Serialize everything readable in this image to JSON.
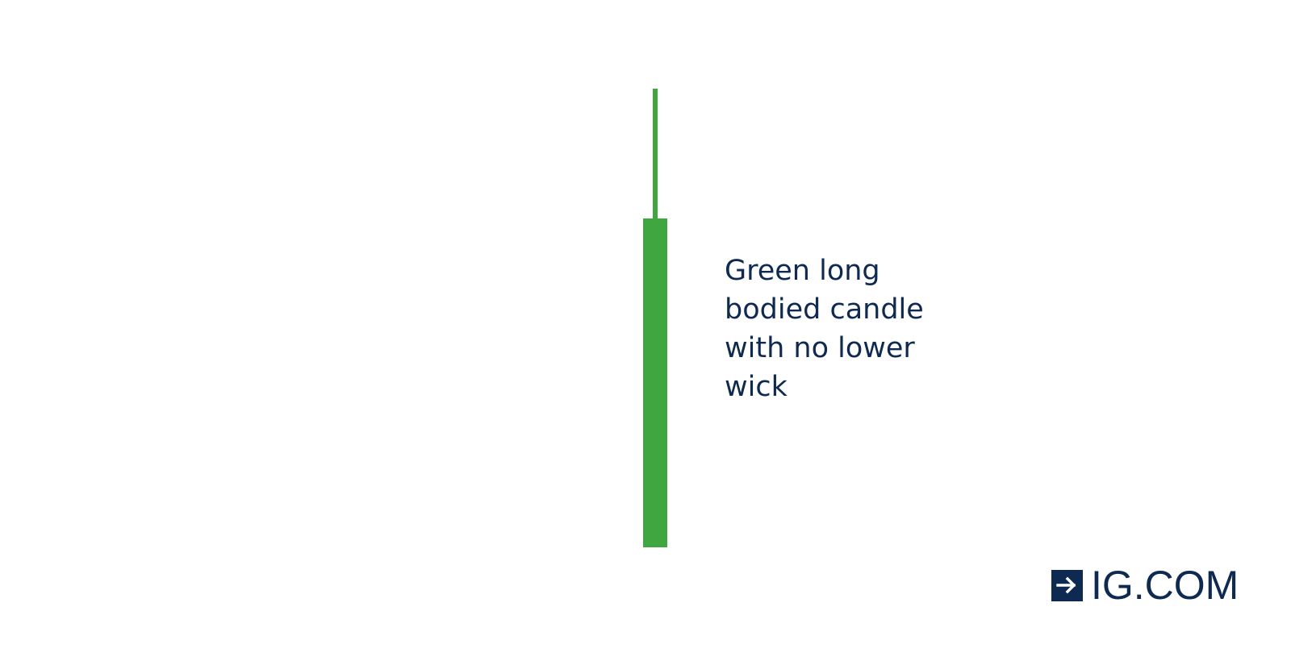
{
  "diagram": {
    "candle_color": "#3fa640",
    "label_lines": [
      "Green long",
      "bodied candle",
      "with no lower",
      "wick"
    ]
  },
  "brand": {
    "name": "IG.COM",
    "color": "#0e2a50",
    "icon": "arrow-right-icon"
  }
}
